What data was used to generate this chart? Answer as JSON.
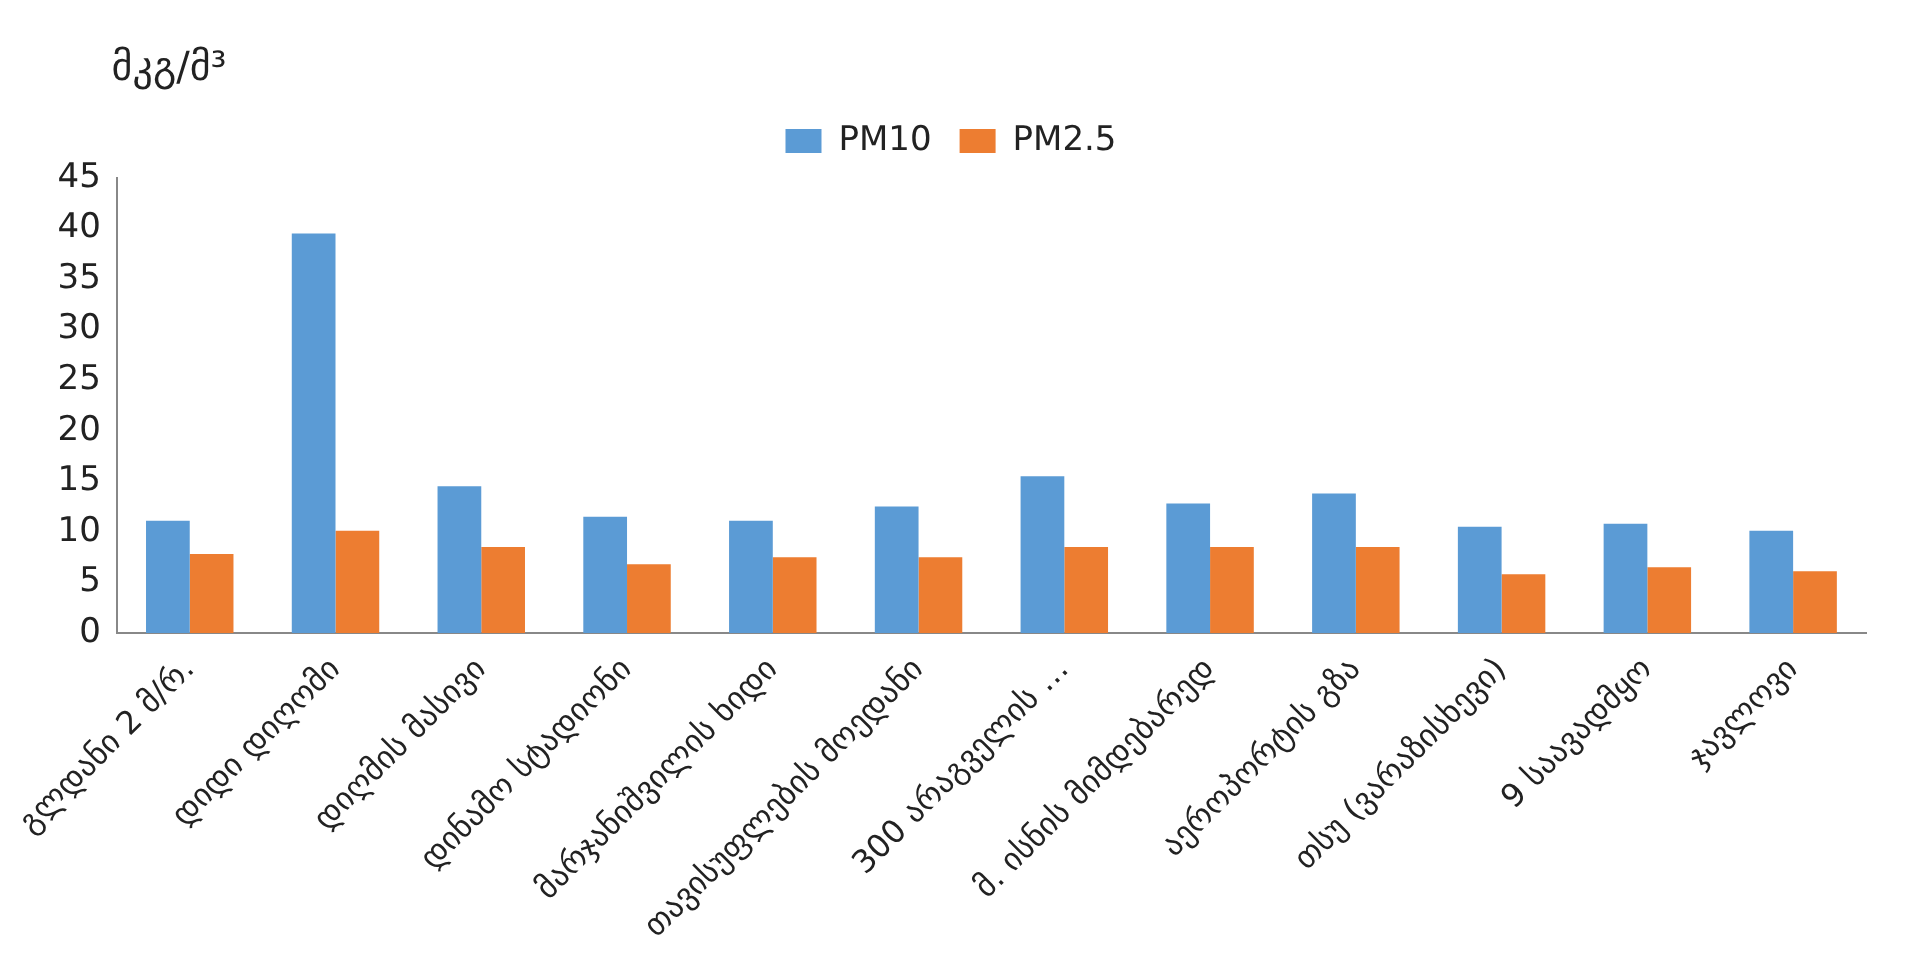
{
  "chart_data": {
    "type": "bar",
    "ylabel": "მკგ/მ³",
    "categories": [
      "გლდანი 2 მ/რ.",
      "დიდი დიღომი",
      "დიღმის მასივი",
      "დინამო სტადიონი",
      "მარჯანიშვილის ხიდი",
      "თავისუფლების მოედანი",
      "300 არაგველის …",
      "მ. ისნის მიმდებარედ",
      "აეროპორტის გზა",
      "თსუ (ვარაზისხევი)",
      "9 საავადმყო",
      "ჯავლოვი"
    ],
    "series": [
      {
        "name": "PM10",
        "color": "#5b9bd5",
        "values": [
          11.1,
          39.5,
          14.5,
          11.5,
          11.1,
          12.5,
          15.5,
          12.8,
          13.8,
          10.5,
          10.8,
          10.1
        ]
      },
      {
        "name": "PM2.5",
        "color": "#ed7d31",
        "values": [
          7.8,
          10.1,
          8.5,
          6.8,
          7.5,
          7.5,
          8.5,
          8.5,
          8.5,
          5.8,
          6.5,
          6.1
        ]
      }
    ],
    "ylim": [
      0,
      45
    ],
    "yticks": [
      0,
      5,
      10,
      15,
      20,
      25,
      30,
      35,
      40,
      45
    ],
    "grid": false,
    "legend": "top"
  }
}
